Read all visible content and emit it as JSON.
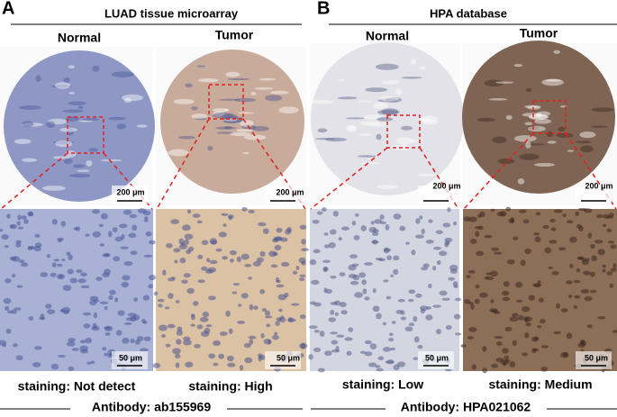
{
  "panels": [
    {
      "label": "A",
      "title": "LUAD tissue microarray",
      "antibody": "Antibody: ab155969",
      "columns": [
        {
          "header": "Normal",
          "scale_top": "200 μm",
          "scale_bottom": "50 μm",
          "staining": "staining: Not detect"
        },
        {
          "header": "Tumor",
          "scale_top": "200 μm",
          "scale_bottom": "50 μm",
          "staining": "staining: High"
        }
      ]
    },
    {
      "label": "B",
      "title": "HPA database",
      "antibody": "Antibody: HPA021062",
      "columns": [
        {
          "header": "Normal",
          "scale_top": "200 μm",
          "scale_bottom": "50 μm",
          "staining": "staining: Low"
        },
        {
          "header": "Tumor",
          "scale_top": "200 μm",
          "scale_bottom": "50 μm",
          "staining": "staining: Medium"
        }
      ]
    }
  ]
}
